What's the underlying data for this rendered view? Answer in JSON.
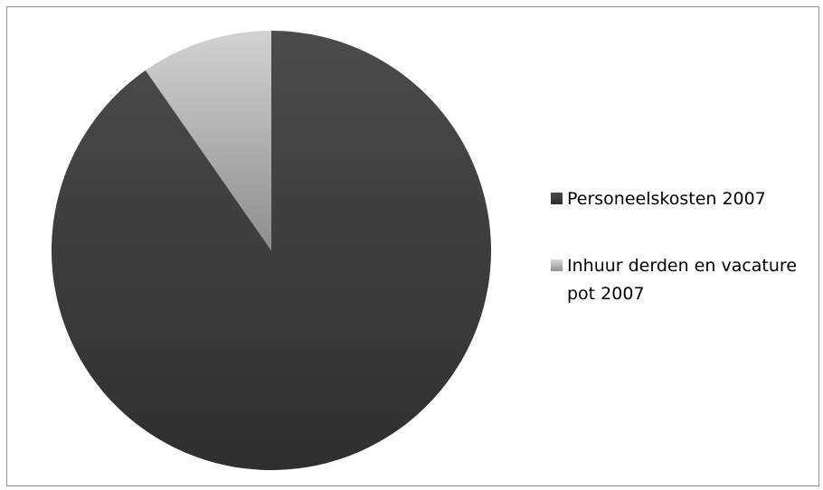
{
  "chart_data": {
    "type": "pie",
    "title": "",
    "categories": [
      "Personeelskosten  2007",
      "Inhuur derden en vacature pot 2007"
    ],
    "values": [
      90.3,
      9.7
    ],
    "colors": [
      "#404040",
      "#b4b4b4"
    ],
    "legend_position": "right",
    "legend": {
      "items": [
        {
          "lines": [
            "Personeelskosten  2007"
          ]
        },
        {
          "lines": [
            "Inhuur derden en vacature",
            "pot 2007"
          ]
        }
      ]
    }
  }
}
